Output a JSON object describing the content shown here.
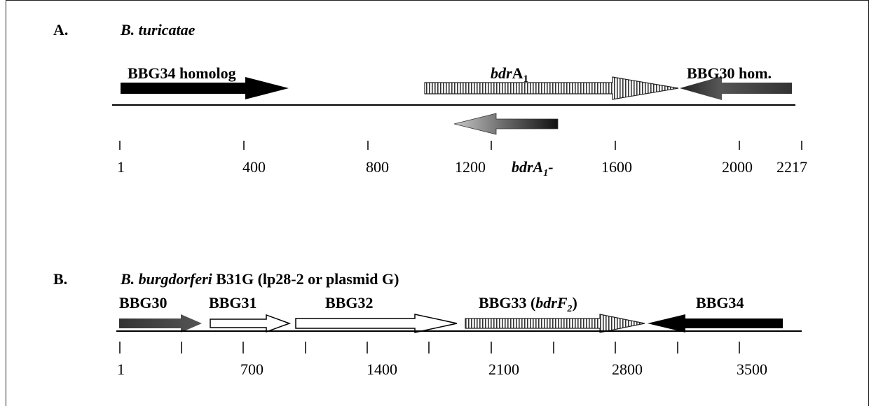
{
  "panel_a": {
    "letter": "A.",
    "organism": "B. turicatae",
    "genes": {
      "bbg34": "BBG34 homolog",
      "bdra1_prefix": "bdr",
      "bdra1_main": "A",
      "bdra1_sub": "1",
      "bbg30": "BBG30 hom."
    },
    "probe": {
      "italic": "bdrA",
      "sub": "1",
      "suffix": "-"
    },
    "scale_labels": [
      "1",
      "400",
      "800",
      "1200",
      "1600",
      "2000",
      "2217"
    ]
  },
  "panel_b": {
    "letter": "B.",
    "organism_italic": "B. burgdorferi",
    "organism_rest": " B31G (lp28-2 or plasmid G)",
    "genes": {
      "bbg30": "BBG30",
      "bbg31": "BBG31",
      "bbg32": "BBG32",
      "bbg33_prefix": "BBG33 (",
      "bbg33_italic": "bdrF",
      "bbg33_sub": "2",
      "bbg33_suffix": ")",
      "bbg34": "BBG34"
    },
    "scale_labels": [
      "1",
      "700",
      "1400",
      "2100",
      "2800",
      "3500"
    ]
  }
}
